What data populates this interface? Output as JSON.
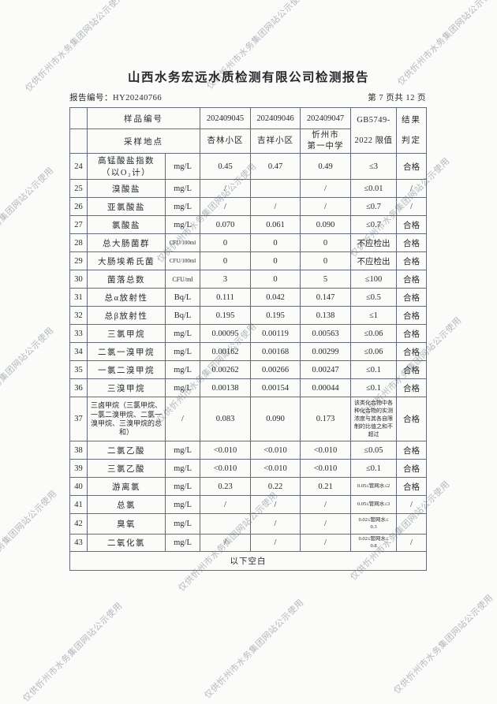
{
  "watermark": {
    "text": "仅供忻州市水务集团网站公示使用"
  },
  "header": {
    "title": "山西水务宏远水质检测有限公司检测报告",
    "report_no_label": "报告编号：",
    "report_no": "HY20240766",
    "page_info": "第 7 页共 12 页"
  },
  "table": {
    "head": {
      "row1_label": "样品编号",
      "row2_label": "采样地点",
      "sample_ids": [
        "202409045",
        "202409046",
        "202409047"
      ],
      "locations": [
        "杏林小区",
        "吉祥小区",
        "忻州市\n第一中学"
      ],
      "standard": "GB5749-\n2022 限值",
      "result": "结果\n判定"
    },
    "rows": [
      {
        "no": "24",
        "name": "高锰酸盐指数\n（以O₂计）",
        "unit": "mg/L",
        "values": [
          "0.45",
          "0.47",
          "0.49"
        ],
        "limit": "≤3",
        "result": "合格"
      },
      {
        "no": "25",
        "name": "溴酸盐",
        "unit": "mg/L",
        "values": [
          "/",
          "",
          "/"
        ],
        "limit": "≤0.01",
        "result": "/"
      },
      {
        "no": "26",
        "name": "亚氯酸盐",
        "unit": "mg/L",
        "values": [
          "/",
          "/",
          "/"
        ],
        "limit": "≤0.7",
        "result": "/"
      },
      {
        "no": "27",
        "name": "氯酸盐",
        "unit": "mg/L",
        "values": [
          "0.070",
          "0.061",
          "0.090"
        ],
        "limit": "≤0.7",
        "result": "合格"
      },
      {
        "no": "28",
        "name": "总大肠菌群",
        "unit": "CFU/100ml",
        "values": [
          "0",
          "0",
          "0"
        ],
        "limit": "不应检出",
        "result": "合格"
      },
      {
        "no": "29",
        "name": "大肠埃希氏菌",
        "unit": "CFU/100ml",
        "values": [
          "0",
          "0",
          "0"
        ],
        "limit": "不应检出",
        "result": "合格"
      },
      {
        "no": "30",
        "name": "菌落总数",
        "unit": "CFU/ml",
        "values": [
          "3",
          "0",
          "5"
        ],
        "limit": "≤100",
        "result": "合格"
      },
      {
        "no": "31",
        "name": "总α放射性",
        "unit": "Bq/L",
        "values": [
          "0.111",
          "0.042",
          "0.147"
        ],
        "limit": "≤0.5",
        "result": "合格"
      },
      {
        "no": "32",
        "name": "总β放射性",
        "unit": "Bq/L",
        "values": [
          "0.195",
          "0.195",
          "0.138"
        ],
        "limit": "≤1",
        "result": "合格"
      },
      {
        "no": "33",
        "name": "三氯甲烷",
        "unit": "mg/L",
        "values": [
          "0.00095",
          "0.00119",
          "0.00563"
        ],
        "limit": "≤0.06",
        "result": "合格"
      },
      {
        "no": "34",
        "name": "二氯一溴甲烷",
        "unit": "mg/L",
        "values": [
          "0.00162",
          "0.00168",
          "0.00299"
        ],
        "limit": "≤0.06",
        "result": "合格"
      },
      {
        "no": "35",
        "name": "一氯二溴甲烷",
        "unit": "mg/L",
        "values": [
          "0.00262",
          "0.00266",
          "0.00247"
        ],
        "limit": "≤0.1",
        "result": "合格"
      },
      {
        "no": "36",
        "name": "三溴甲烷",
        "unit": "mg/L",
        "values": [
          "0.00138",
          "0.00154",
          "0.00044"
        ],
        "limit": "≤0.1",
        "result": "合格"
      },
      {
        "no": "37",
        "name": "三卤甲烷（三氯甲烷、一氯二溴甲烷、二氯一溴甲烷、三溴甲烷的总和）",
        "unit": "/",
        "values": [
          "0.083",
          "0.090",
          "0.173"
        ],
        "limit": "该类化合物中各种化合物的实测浓度与其各自限制的比值之和不超过",
        "result": "合格"
      },
      {
        "no": "38",
        "name": "二氯乙酸",
        "unit": "mg/L",
        "values": [
          "<0.010",
          "<0.010",
          "<0.010"
        ],
        "limit": "≤0.05",
        "result": "合格"
      },
      {
        "no": "39",
        "name": "三氯乙酸",
        "unit": "mg/L",
        "values": [
          "<0.010",
          "<0.010",
          "<0.010"
        ],
        "limit": "≤0.1",
        "result": "合格"
      },
      {
        "no": "40",
        "name": "游离氯",
        "unit": "mg/L",
        "values": [
          "0.23",
          "0.22",
          "0.21"
        ],
        "limit": "0.05≤管网水≤2",
        "result": "合格"
      },
      {
        "no": "41",
        "name": "总氯",
        "unit": "mg/L",
        "values": [
          "/",
          "/",
          "/"
        ],
        "limit": "0.05≤管网水≤3",
        "result": "/"
      },
      {
        "no": "42",
        "name": "臭氧",
        "unit": "mg/L",
        "values": [
          "",
          "/",
          "/"
        ],
        "limit": "0.02≤管网水≤\n0.3",
        "result": ""
      },
      {
        "no": "43",
        "name": "二氧化氯",
        "unit": "mg/L",
        "values": [
          "/",
          "/",
          "/"
        ],
        "limit": "0.02≤管网水≤\n0.8",
        "result": "/"
      }
    ],
    "footer": "以下空白"
  }
}
